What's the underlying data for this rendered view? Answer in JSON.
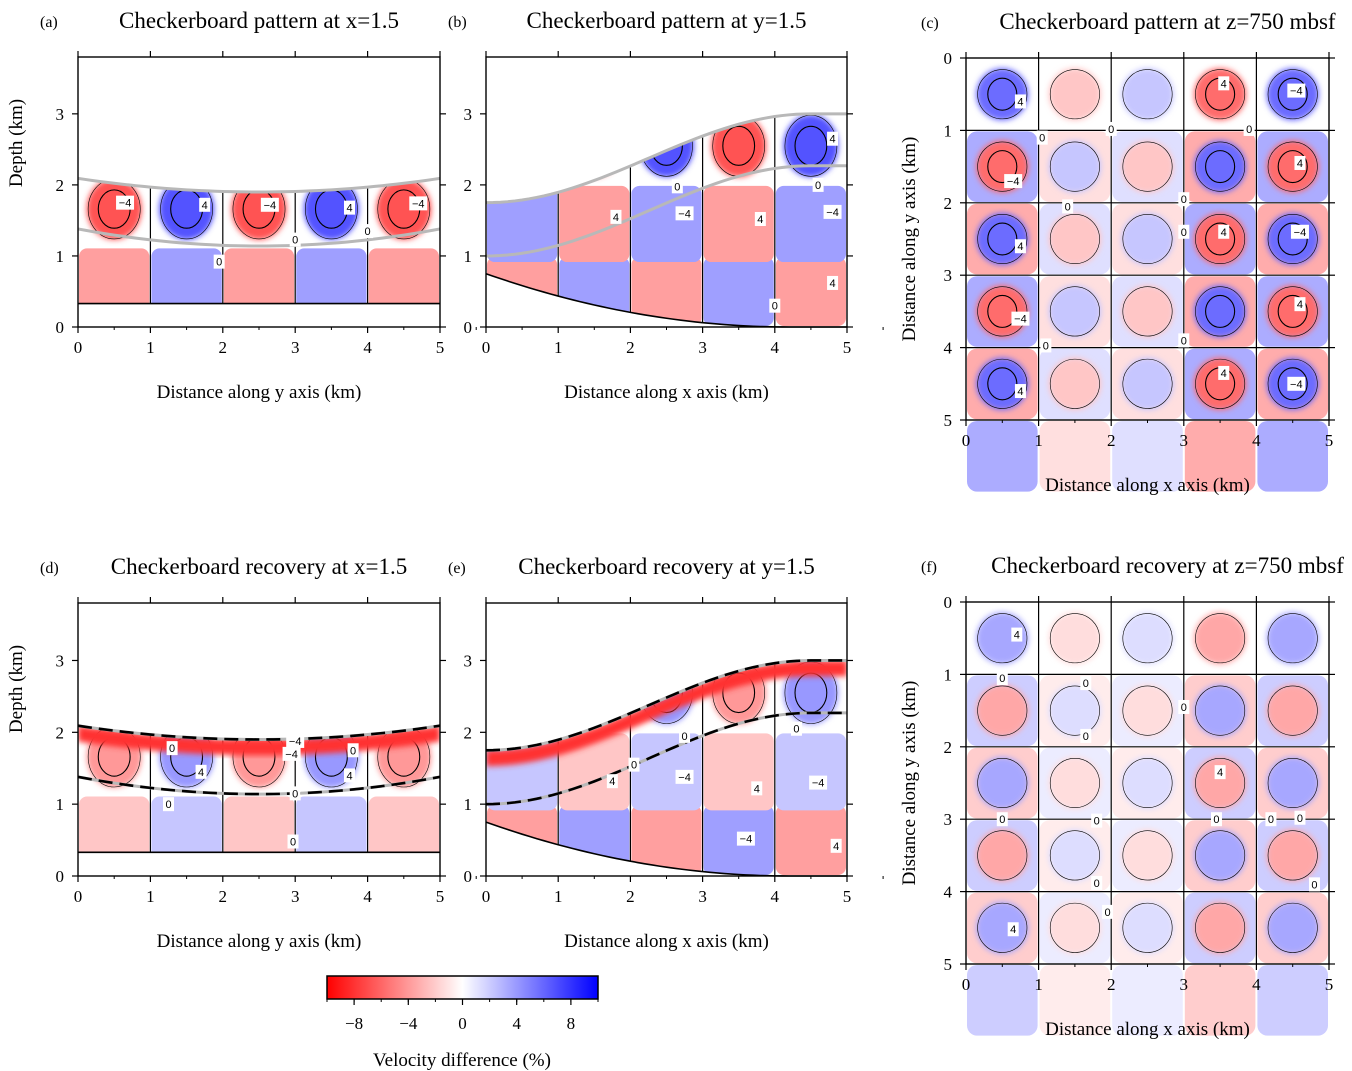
{
  "colorbar": {
    "label": "Velocity difference (%)",
    "ticks": [
      -8,
      -4,
      0,
      4,
      8
    ],
    "range": [
      -10,
      10
    ],
    "colors": {
      "negative": "#ff0000",
      "zero": "#ffffff",
      "positive": "#0000ff"
    }
  },
  "chart_data": [
    {
      "id": "a",
      "type": "heatmap",
      "panel_label": "(a)",
      "title": "Checkerboard pattern at x=1.5",
      "xlabel": "Distance along y axis (km)",
      "ylabel": "Depth (km)",
      "xlim": [
        0,
        5
      ],
      "ylim": [
        3.8,
        0
      ],
      "xticks": [
        0,
        1,
        2,
        3,
        4,
        5
      ],
      "yticks": [
        0,
        1,
        2,
        3
      ],
      "contour_labels": [
        {
          "text": "0",
          "x": 1.95,
          "y": 0.92
        },
        {
          "text": "0",
          "x": 3.0,
          "y": 1.23
        },
        {
          "text": "0",
          "x": 4.0,
          "y": 1.35
        },
        {
          "text": "−4",
          "x": 0.65,
          "y": 1.75
        },
        {
          "text": "4",
          "x": 1.75,
          "y": 1.72
        },
        {
          "text": "−4",
          "x": 2.65,
          "y": 1.72
        },
        {
          "text": "4",
          "x": 3.75,
          "y": 1.68
        },
        {
          "text": "−4",
          "x": 4.7,
          "y": 1.74
        }
      ]
    },
    {
      "id": "b",
      "type": "heatmap",
      "panel_label": "(b)",
      "title": "Checkerboard pattern at y=1.5",
      "xlabel": "Distance along x axis (km)",
      "ylabel": "",
      "xlim": [
        0,
        5
      ],
      "ylim": [
        3.8,
        0
      ],
      "xticks": [
        0,
        1,
        2,
        3,
        4,
        5
      ],
      "yticks": [
        0,
        1,
        2,
        3
      ],
      "contour_labels": [
        {
          "text": "0",
          "x": 4.0,
          "y": 0.3
        },
        {
          "text": "4",
          "x": 4.8,
          "y": 0.62
        },
        {
          "text": "4",
          "x": 1.8,
          "y": 1.55
        },
        {
          "text": "−4",
          "x": 2.75,
          "y": 1.6
        },
        {
          "text": "4",
          "x": 3.8,
          "y": 1.52
        },
        {
          "text": "−4",
          "x": 4.8,
          "y": 1.62
        },
        {
          "text": "0",
          "x": 2.65,
          "y": 1.98
        },
        {
          "text": "0",
          "x": 4.6,
          "y": 2.0
        },
        {
          "text": "4",
          "x": 4.8,
          "y": 2.65
        }
      ]
    },
    {
      "id": "c",
      "type": "heatmap",
      "panel_label": "(c)",
      "title": "Checkerboard pattern at z=750 mbsf",
      "xlabel": "Distance along x axis (km)",
      "ylabel": "Distance along y axis (km)",
      "xlim": [
        0,
        5
      ],
      "ylim": [
        0,
        5
      ],
      "xticks": [
        0,
        1,
        2,
        3,
        4,
        5
      ],
      "yticks": [
        0,
        1,
        2,
        3,
        4,
        5
      ],
      "contour_labels": [
        {
          "text": "4",
          "x": 0.75,
          "y": 4.6
        },
        {
          "text": "4",
          "x": 3.55,
          "y": 4.35
        },
        {
          "text": "−4",
          "x": 4.55,
          "y": 4.5
        },
        {
          "text": "0",
          "x": 1.1,
          "y": 3.97
        },
        {
          "text": "0",
          "x": 3.0,
          "y": 3.9
        },
        {
          "text": "−4",
          "x": 0.75,
          "y": 3.6
        },
        {
          "text": "4",
          "x": 4.6,
          "y": 3.4
        },
        {
          "text": "4",
          "x": 0.75,
          "y": 2.6
        },
        {
          "text": "0",
          "x": 3.0,
          "y": 2.4
        },
        {
          "text": "4",
          "x": 3.55,
          "y": 2.4
        },
        {
          "text": "−4",
          "x": 4.6,
          "y": 2.4
        },
        {
          "text": "0",
          "x": 1.4,
          "y": 2.05
        },
        {
          "text": "0",
          "x": 3.0,
          "y": 1.95
        },
        {
          "text": "−4",
          "x": 0.65,
          "y": 1.7
        },
        {
          "text": "4",
          "x": 4.6,
          "y": 1.45
        },
        {
          "text": "0",
          "x": 1.05,
          "y": 1.1
        },
        {
          "text": "0",
          "x": 2.0,
          "y": 0.98
        },
        {
          "text": "0",
          "x": 3.9,
          "y": 0.98
        },
        {
          "text": "4",
          "x": 0.75,
          "y": 0.6
        },
        {
          "text": "4",
          "x": 3.55,
          "y": 0.35
        },
        {
          "text": "−4",
          "x": 4.55,
          "y": 0.45
        }
      ]
    },
    {
      "id": "d",
      "type": "heatmap",
      "panel_label": "(d)",
      "title": "Checkerboard recovery at x=1.5",
      "xlabel": "Distance along y axis (km)",
      "ylabel": "Depth (km)",
      "xlim": [
        0,
        5
      ],
      "ylim": [
        3.8,
        0
      ],
      "xticks": [
        0,
        1,
        2,
        3,
        4,
        5
      ],
      "yticks": [
        0,
        1,
        2,
        3
      ],
      "contour_labels": [
        {
          "text": "0",
          "x": 2.97,
          "y": 0.48
        },
        {
          "text": "0",
          "x": 1.25,
          "y": 1.0
        },
        {
          "text": "0",
          "x": 3.0,
          "y": 1.15
        },
        {
          "text": "4",
          "x": 1.7,
          "y": 1.45
        },
        {
          "text": "4",
          "x": 3.75,
          "y": 1.4
        },
        {
          "text": "−4",
          "x": 2.95,
          "y": 1.7
        },
        {
          "text": "0",
          "x": 1.3,
          "y": 1.78
        },
        {
          "text": "0",
          "x": 3.8,
          "y": 1.75
        },
        {
          "text": "−4",
          "x": 3.0,
          "y": 1.88
        }
      ]
    },
    {
      "id": "e",
      "type": "heatmap",
      "panel_label": "(e)",
      "title": "Checkerboard recovery at y=1.5",
      "xlabel": "Distance along x axis (km)",
      "ylabel": "",
      "xlim": [
        0,
        5
      ],
      "ylim": [
        3.8,
        0
      ],
      "xticks": [
        0,
        1,
        2,
        3,
        4,
        5
      ],
      "yticks": [
        0,
        1,
        2,
        3
      ],
      "contour_labels": [
        {
          "text": "−4",
          "x": 3.6,
          "y": 0.52
        },
        {
          "text": "4",
          "x": 4.85,
          "y": 0.42
        },
        {
          "text": "4",
          "x": 1.75,
          "y": 1.32
        },
        {
          "text": "−4",
          "x": 2.75,
          "y": 1.38
        },
        {
          "text": "4",
          "x": 3.75,
          "y": 1.22
        },
        {
          "text": "−4",
          "x": 4.6,
          "y": 1.3
        },
        {
          "text": "0",
          "x": 2.05,
          "y": 1.55
        },
        {
          "text": "0",
          "x": 2.75,
          "y": 1.95
        },
        {
          "text": "0",
          "x": 4.3,
          "y": 2.05
        }
      ]
    },
    {
      "id": "f",
      "type": "heatmap",
      "panel_label": "(f)",
      "title": "Checkerboard recovery at z=750 mbsf",
      "xlabel": "Distance along x axis (km)",
      "ylabel": "Distance along y axis (km)",
      "xlim": [
        0,
        5
      ],
      "ylim": [
        0,
        5
      ],
      "xticks": [
        0,
        1,
        2,
        3,
        4,
        5
      ],
      "yticks": [
        0,
        1,
        2,
        3,
        4,
        5
      ],
      "contour_labels": [
        {
          "text": "4",
          "x": 0.65,
          "y": 4.52
        },
        {
          "text": "0",
          "x": 1.95,
          "y": 4.28
        },
        {
          "text": "0",
          "x": 1.8,
          "y": 3.88
        },
        {
          "text": "0",
          "x": 4.8,
          "y": 3.9
        },
        {
          "text": "0",
          "x": 0.5,
          "y": 3.0
        },
        {
          "text": "0",
          "x": 1.8,
          "y": 3.02
        },
        {
          "text": "0",
          "x": 3.45,
          "y": 3.0
        },
        {
          "text": "0",
          "x": 4.2,
          "y": 3.0
        },
        {
          "text": "0",
          "x": 4.6,
          "y": 2.98
        },
        {
          "text": "4",
          "x": 3.5,
          "y": 2.35
        },
        {
          "text": "0",
          "x": 1.65,
          "y": 1.85
        },
        {
          "text": "0",
          "x": 3.0,
          "y": 1.45
        },
        {
          "text": "0",
          "x": 0.5,
          "y": 1.05
        },
        {
          "text": "0",
          "x": 1.65,
          "y": 1.12
        },
        {
          "text": "4",
          "x": 0.7,
          "y": 0.45
        }
      ]
    }
  ]
}
